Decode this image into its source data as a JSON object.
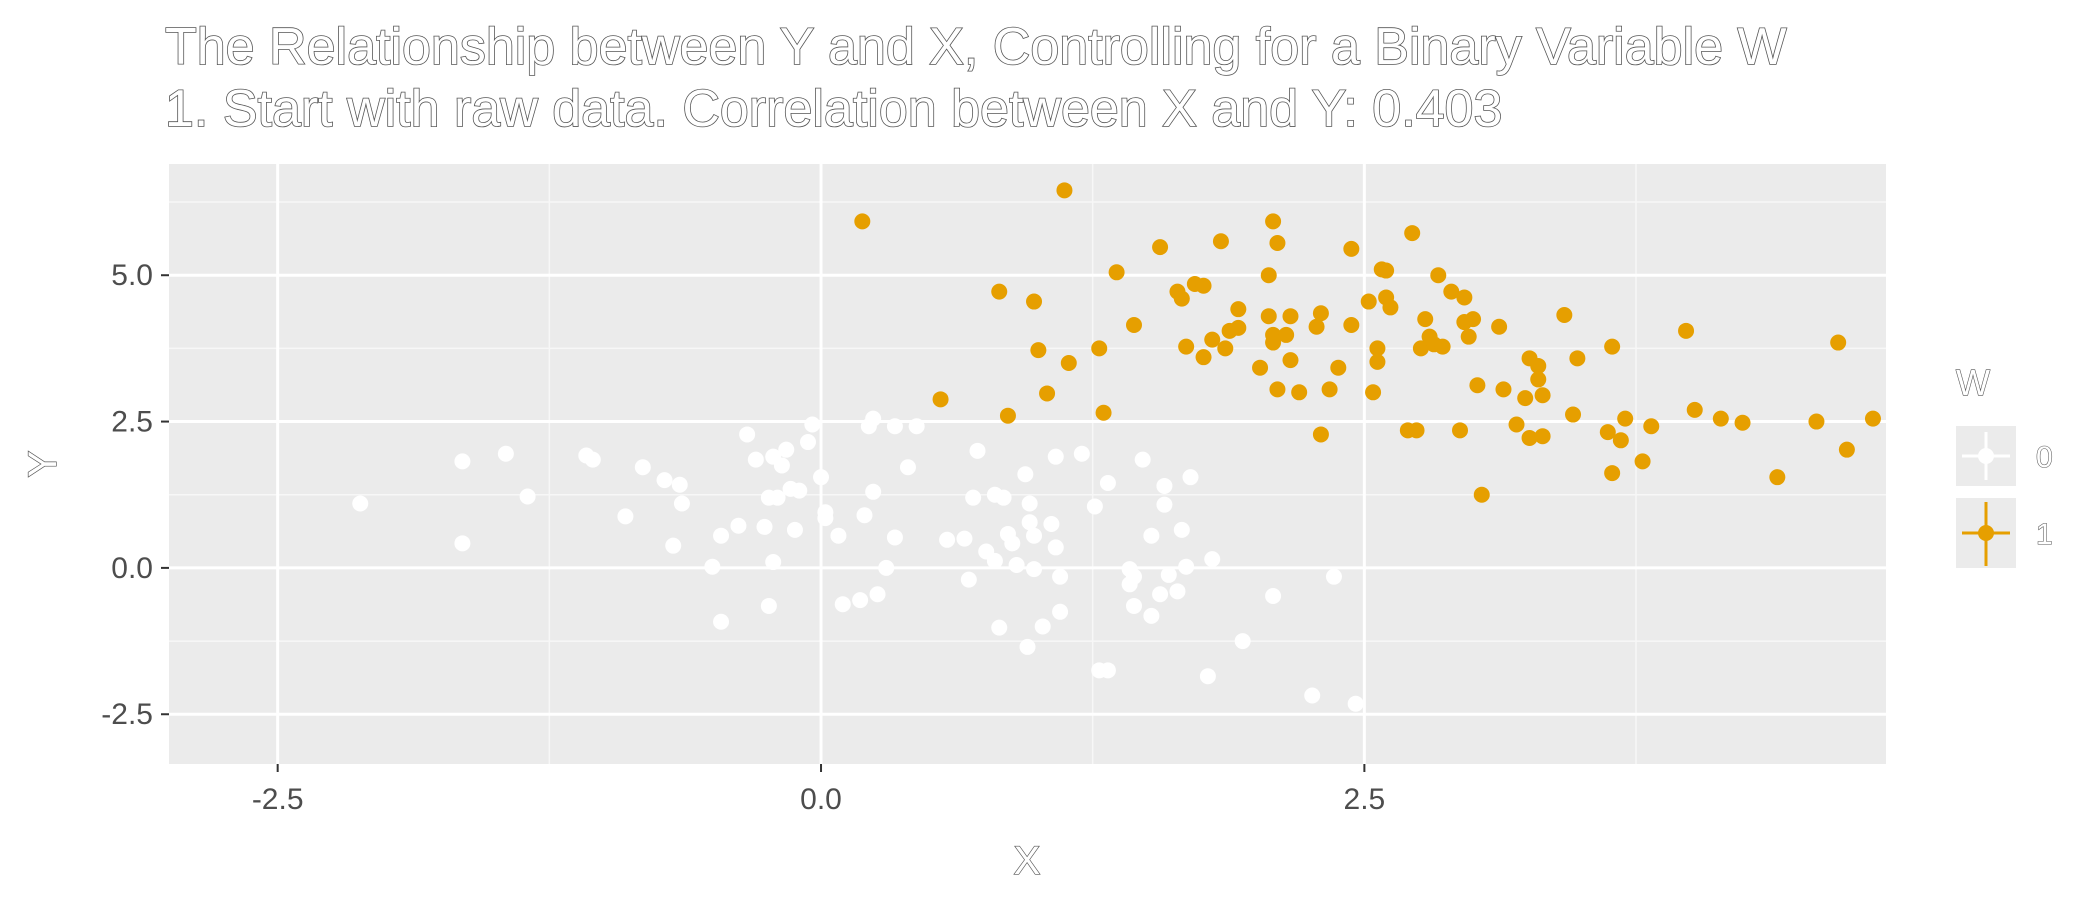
{
  "chart_data": {
    "type": "scatter",
    "title": "The Relationship between Y and X, Controlling for a Binary Variable W",
    "subtitle": "1. Start with raw data. Correlation between X and Y: 0.403",
    "xlabel": "X",
    "ylabel": "Y",
    "xlim": [
      -3.0,
      4.9
    ],
    "ylim": [
      -3.35,
      6.9
    ],
    "x_ticks": [
      -2.5,
      0.0,
      2.5
    ],
    "x_tick_labels": [
      "-2.5",
      "0.0",
      "2.5"
    ],
    "y_ticks": [
      -2.5,
      0.0,
      2.5,
      5.0
    ],
    "y_tick_labels": [
      "-2.5",
      "0.0",
      "2.5",
      "5.0"
    ],
    "grid": true,
    "legend": {
      "title": "W",
      "position": "right",
      "entries": [
        {
          "label": "0",
          "color": "#ffffff"
        },
        {
          "label": "1",
          "color": "#e69f00"
        }
      ]
    },
    "series": [
      {
        "name": "0",
        "color": "#ffffff",
        "points": [
          [
            -2.12,
            1.1
          ],
          [
            -1.65,
            1.82
          ],
          [
            -1.65,
            0.42
          ],
          [
            -1.45,
            1.95
          ],
          [
            -1.35,
            1.22
          ],
          [
            -1.08,
            1.92
          ],
          [
            -1.05,
            1.85
          ],
          [
            -0.9,
            0.88
          ],
          [
            -0.82,
            1.72
          ],
          [
            -0.72,
            1.5
          ],
          [
            -0.68,
            0.38
          ],
          [
            -0.65,
            1.42
          ],
          [
            -0.64,
            1.1
          ],
          [
            -0.5,
            0.02
          ],
          [
            -0.46,
            0.55
          ],
          [
            -0.46,
            -0.92
          ],
          [
            -0.38,
            0.72
          ],
          [
            -0.34,
            2.28
          ],
          [
            -0.3,
            1.85
          ],
          [
            -0.26,
            0.7
          ],
          [
            -0.24,
            -0.65
          ],
          [
            -0.24,
            1.2
          ],
          [
            -0.22,
            0.1
          ],
          [
            -0.22,
            1.9
          ],
          [
            -0.2,
            1.2
          ],
          [
            -0.18,
            1.75
          ],
          [
            -0.16,
            2.02
          ],
          [
            -0.14,
            1.35
          ],
          [
            -0.12,
            0.65
          ],
          [
            -0.1,
            1.32
          ],
          [
            -0.06,
            2.15
          ],
          [
            -0.04,
            2.45
          ],
          [
            0.0,
            1.55
          ],
          [
            0.02,
            0.95
          ],
          [
            0.02,
            0.85
          ],
          [
            0.08,
            0.55
          ],
          [
            0.1,
            -0.62
          ],
          [
            0.18,
            -0.55
          ],
          [
            0.2,
            0.9
          ],
          [
            0.22,
            2.42
          ],
          [
            0.24,
            2.55
          ],
          [
            0.24,
            1.3
          ],
          [
            0.26,
            -0.45
          ],
          [
            0.3,
            0.0
          ],
          [
            0.34,
            0.52
          ],
          [
            0.34,
            2.42
          ],
          [
            0.4,
            1.72
          ],
          [
            0.44,
            2.42
          ],
          [
            0.58,
            0.48
          ],
          [
            0.66,
            0.5
          ],
          [
            0.68,
            -0.2
          ],
          [
            0.7,
            1.2
          ],
          [
            0.72,
            2.0
          ],
          [
            0.76,
            0.28
          ],
          [
            0.8,
            0.12
          ],
          [
            0.8,
            1.25
          ],
          [
            0.82,
            -1.02
          ],
          [
            0.84,
            1.2
          ],
          [
            0.86,
            0.58
          ],
          [
            0.88,
            0.42
          ],
          [
            0.9,
            0.05
          ],
          [
            0.94,
            1.6
          ],
          [
            0.95,
            -1.35
          ],
          [
            0.96,
            0.78
          ],
          [
            0.96,
            1.1
          ],
          [
            0.98,
            0.55
          ],
          [
            0.98,
            -0.02
          ],
          [
            1.02,
            -1.0
          ],
          [
            1.06,
            0.75
          ],
          [
            1.08,
            0.35
          ],
          [
            1.08,
            1.9
          ],
          [
            1.1,
            -0.15
          ],
          [
            1.1,
            -0.75
          ],
          [
            1.2,
            1.95
          ],
          [
            1.26,
            1.05
          ],
          [
            1.28,
            -1.75
          ],
          [
            1.32,
            -1.75
          ],
          [
            1.32,
            1.45
          ],
          [
            1.42,
            -0.02
          ],
          [
            1.42,
            -0.28
          ],
          [
            1.44,
            -0.15
          ],
          [
            1.44,
            -0.65
          ],
          [
            1.48,
            1.85
          ],
          [
            1.52,
            -0.82
          ],
          [
            1.52,
            0.55
          ],
          [
            1.56,
            -0.45
          ],
          [
            1.58,
            1.08
          ],
          [
            1.58,
            1.4
          ],
          [
            1.6,
            -0.12
          ],
          [
            1.64,
            -0.4
          ],
          [
            1.66,
            0.65
          ],
          [
            1.68,
            0.02
          ],
          [
            1.7,
            1.55
          ],
          [
            1.78,
            -1.85
          ],
          [
            1.8,
            0.15
          ],
          [
            1.94,
            -1.25
          ],
          [
            2.08,
            -0.48
          ],
          [
            2.26,
            -2.18
          ],
          [
            2.36,
            -0.15
          ],
          [
            2.46,
            -2.32
          ]
        ]
      },
      {
        "name": "1",
        "color": "#e69f00",
        "points": [
          [
            0.19,
            5.92
          ],
          [
            0.55,
            2.88
          ],
          [
            0.82,
            4.72
          ],
          [
            0.86,
            2.6
          ],
          [
            0.98,
            4.55
          ],
          [
            1.0,
            3.72
          ],
          [
            1.04,
            2.98
          ],
          [
            1.12,
            6.45
          ],
          [
            1.14,
            3.5
          ],
          [
            1.28,
            3.75
          ],
          [
            1.3,
            2.65
          ],
          [
            1.36,
            5.05
          ],
          [
            1.44,
            4.15
          ],
          [
            1.56,
            5.48
          ],
          [
            1.64,
            4.72
          ],
          [
            1.66,
            4.6
          ],
          [
            1.68,
            3.78
          ],
          [
            1.72,
            4.85
          ],
          [
            1.76,
            4.82
          ],
          [
            1.76,
            3.6
          ],
          [
            1.8,
            3.9
          ],
          [
            1.84,
            5.58
          ],
          [
            1.86,
            3.75
          ],
          [
            1.88,
            4.05
          ],
          [
            1.92,
            4.42
          ],
          [
            1.92,
            4.1
          ],
          [
            2.02,
            3.42
          ],
          [
            2.06,
            5.0
          ],
          [
            2.06,
            4.3
          ],
          [
            2.08,
            5.92
          ],
          [
            2.08,
            3.98
          ],
          [
            2.08,
            3.85
          ],
          [
            2.1,
            3.05
          ],
          [
            2.1,
            5.55
          ],
          [
            2.14,
            3.98
          ],
          [
            2.16,
            4.3
          ],
          [
            2.16,
            3.55
          ],
          [
            2.2,
            3.0
          ],
          [
            2.28,
            4.12
          ],
          [
            2.3,
            4.35
          ],
          [
            2.3,
            2.28
          ],
          [
            2.34,
            3.05
          ],
          [
            2.38,
            3.42
          ],
          [
            2.44,
            5.45
          ],
          [
            2.44,
            4.15
          ],
          [
            2.52,
            4.55
          ],
          [
            2.54,
            3.0
          ],
          [
            2.56,
            3.75
          ],
          [
            2.56,
            3.52
          ],
          [
            2.58,
            5.1
          ],
          [
            2.6,
            4.62
          ],
          [
            2.6,
            5.08
          ],
          [
            2.62,
            4.45
          ],
          [
            2.7,
            2.35
          ],
          [
            2.72,
            5.72
          ],
          [
            2.74,
            2.35
          ],
          [
            2.76,
            3.75
          ],
          [
            2.78,
            4.25
          ],
          [
            2.8,
            3.95
          ],
          [
            2.82,
            3.82
          ],
          [
            2.84,
            5.0
          ],
          [
            2.86,
            3.78
          ],
          [
            2.9,
            4.72
          ],
          [
            2.94,
            2.35
          ],
          [
            2.96,
            4.2
          ],
          [
            2.96,
            4.62
          ],
          [
            2.98,
            3.95
          ],
          [
            3.0,
            4.25
          ],
          [
            3.02,
            3.12
          ],
          [
            3.04,
            1.25
          ],
          [
            3.12,
            4.12
          ],
          [
            3.14,
            3.05
          ],
          [
            3.2,
            2.45
          ],
          [
            3.24,
            2.9
          ],
          [
            3.26,
            3.58
          ],
          [
            3.26,
            2.22
          ],
          [
            3.3,
            3.45
          ],
          [
            3.3,
            3.22
          ],
          [
            3.32,
            2.95
          ],
          [
            3.32,
            2.25
          ],
          [
            3.42,
            4.32
          ],
          [
            3.46,
            2.62
          ],
          [
            3.48,
            3.58
          ],
          [
            3.62,
            2.32
          ],
          [
            3.64,
            3.78
          ],
          [
            3.64,
            1.62
          ],
          [
            3.68,
            2.18
          ],
          [
            3.7,
            2.55
          ],
          [
            3.78,
            1.82
          ],
          [
            3.82,
            2.42
          ],
          [
            3.98,
            4.05
          ],
          [
            4.02,
            2.7
          ],
          [
            4.14,
            2.55
          ],
          [
            4.24,
            2.48
          ],
          [
            4.4,
            1.55
          ],
          [
            4.58,
            2.5
          ],
          [
            4.68,
            3.85
          ],
          [
            4.72,
            2.02
          ],
          [
            4.84,
            2.55
          ]
        ]
      }
    ]
  }
}
